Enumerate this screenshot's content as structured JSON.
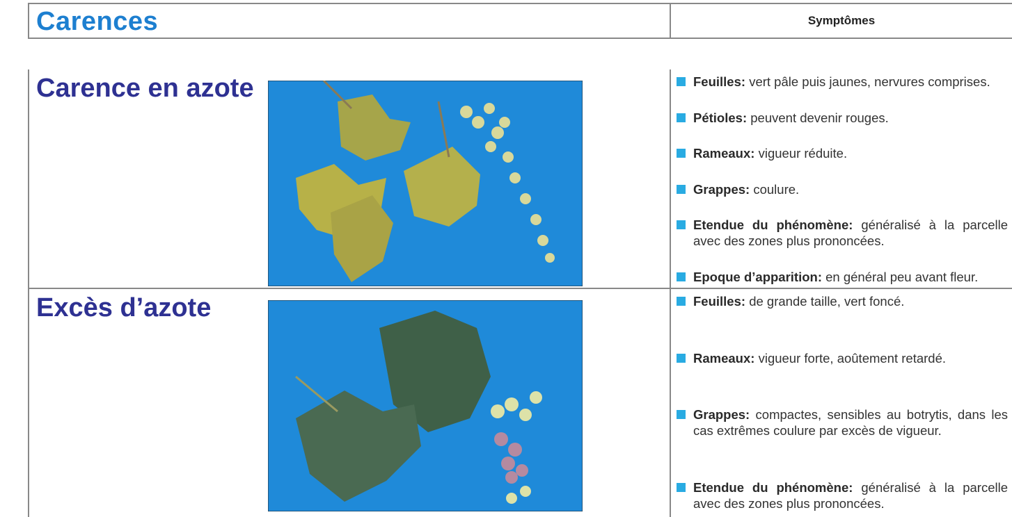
{
  "header": {
    "title": "Carences",
    "symptoms_heading": "Symptômes"
  },
  "rows": [
    {
      "title": "Carence en azote",
      "symptoms": [
        {
          "label": "Feuilles:",
          "text": "vert pâle puis jaunes, nervures comprises."
        },
        {
          "label": "Pétioles:",
          "text": "peuvent devenir rouges."
        },
        {
          "label": "Rameaux:",
          "text": "vigueur réduite."
        },
        {
          "label": "Grappes:",
          "text": "coulure."
        },
        {
          "label": "Etendue du phénomène:",
          "text": "généralisé à la parcelle avec des zones plus prononcées."
        },
        {
          "label": "Epoque d’apparition:",
          "text": "en général peu avant fleur."
        }
      ]
    },
    {
      "title": "Excès d’azote",
      "symptoms": [
        {
          "label": "Feuilles:",
          "text": "de grande taille, vert foncé."
        },
        {
          "label": "Rameaux:",
          "text": "vigueur forte, aoûtement retardé."
        },
        {
          "label": "Grappes:",
          "text": "compactes, sensibles au botrytis, dans les cas extrêmes coulure par excès de vigueur."
        },
        {
          "label": "Etendue du phénomène:",
          "text": "généralisé à la parcelle avec des zones plus prononcées."
        }
      ]
    }
  ]
}
